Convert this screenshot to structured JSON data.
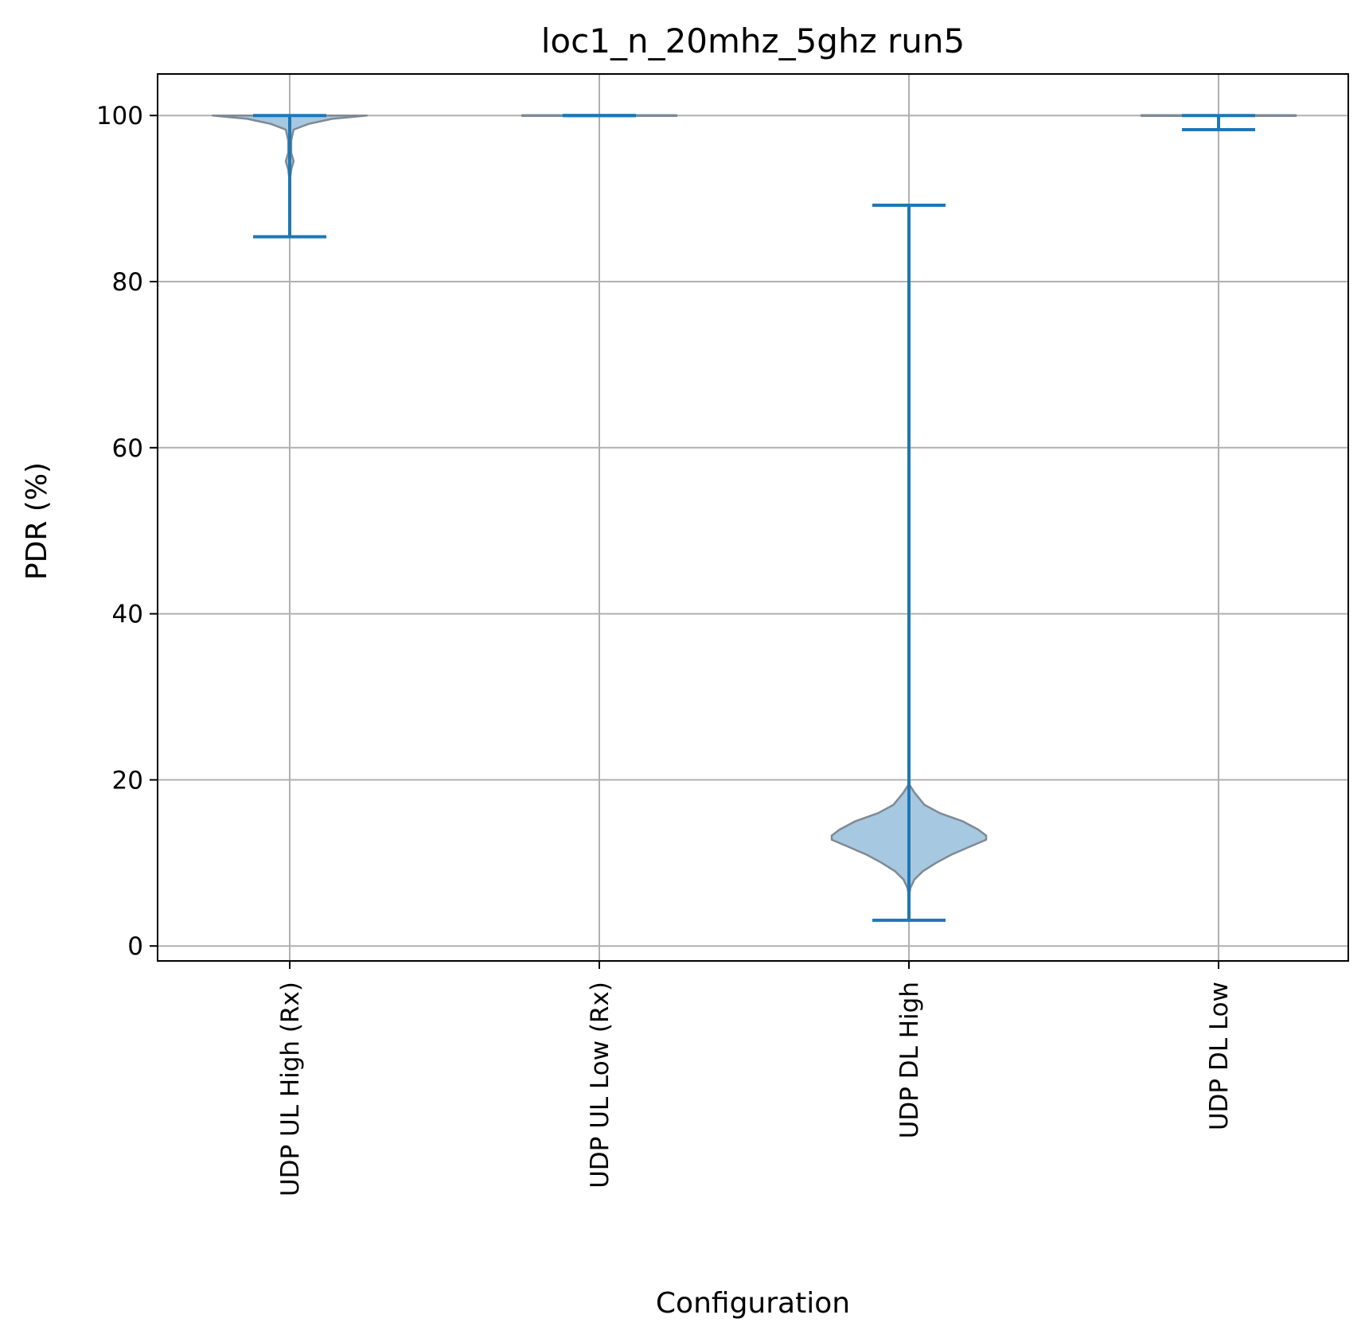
{
  "chart_data": {
    "type": "violin",
    "title": "loc1_n_20mhz_5ghz run5",
    "xlabel": "Configuration",
    "ylabel": "PDR (%)",
    "ylim": [
      -1.8,
      105.0
    ],
    "yticks": [
      0,
      20,
      40,
      60,
      80,
      100
    ],
    "grid": true,
    "categories": [
      "UDP UL High (Rx)",
      "UDP UL Low (Rx)",
      "UDP DL High",
      "UDP DL Low"
    ],
    "violins": [
      {
        "category": "UDP UL High (Rx)",
        "min": 85.4,
        "max": 100.0,
        "profile": [
          [
            100.0,
            1.0
          ],
          [
            99.6,
            0.55
          ],
          [
            99.0,
            0.25
          ],
          [
            98.3,
            0.05
          ],
          [
            97.0,
            0.02
          ],
          [
            95.5,
            0.02
          ],
          [
            94.5,
            0.05
          ],
          [
            93.5,
            0.02
          ],
          [
            92.0,
            0.0
          ]
        ]
      },
      {
        "category": "UDP UL Low (Rx)",
        "min": 100.0,
        "max": 100.0,
        "profile": [
          [
            100.05,
            1.0
          ],
          [
            99.95,
            1.0
          ]
        ]
      },
      {
        "category": "UDP DL High",
        "min": 3.1,
        "max": 89.2,
        "profile": [
          [
            19.5,
            0.0
          ],
          [
            18.5,
            0.07
          ],
          [
            17.0,
            0.2
          ],
          [
            16.0,
            0.4
          ],
          [
            15.0,
            0.7
          ],
          [
            14.0,
            0.9
          ],
          [
            13.3,
            1.0
          ],
          [
            12.8,
            1.0
          ],
          [
            12.0,
            0.8
          ],
          [
            11.0,
            0.55
          ],
          [
            10.0,
            0.35
          ],
          [
            9.0,
            0.18
          ],
          [
            8.0,
            0.07
          ],
          [
            7.0,
            0.02
          ],
          [
            6.0,
            0.0
          ]
        ]
      },
      {
        "category": "UDP DL Low",
        "min": 98.3,
        "max": 100.0,
        "profile": [
          [
            100.05,
            1.0
          ],
          [
            99.95,
            1.0
          ]
        ]
      }
    ],
    "colors": {
      "body_fill": "#a6c8e1",
      "body_edge": "#7f8a95",
      "whisker": "#1f77b4",
      "grid": "#b0b0b0"
    }
  }
}
